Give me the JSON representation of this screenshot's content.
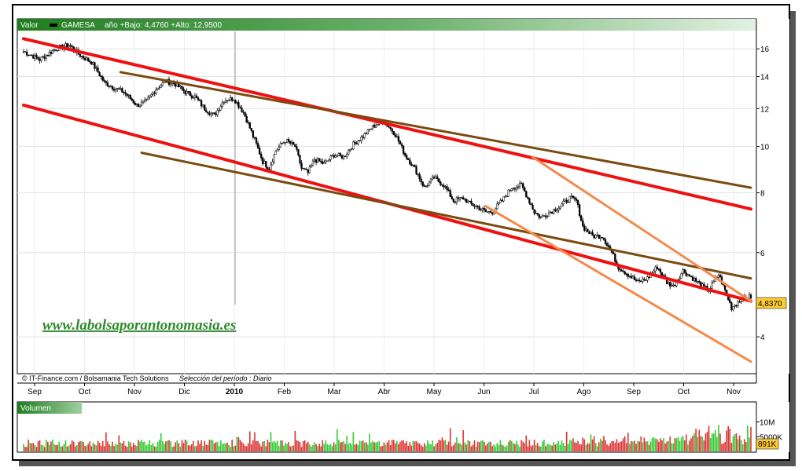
{
  "header": {
    "label_valor": "Valor",
    "ticker": "GAMESA",
    "range_text": "año +Bajo: 4,4760 +Alto: 12,9500"
  },
  "watermark": "www.labolsaporantonomasia.es",
  "credits": {
    "source": "© IT-Finance.com / Bolsamania Tech Solutions",
    "period": "Selección del período : Diario"
  },
  "volume_panel": {
    "title": "Volumen"
  },
  "last_price_label": "4,8370",
  "last_volume_label": "891K",
  "colors": {
    "header_dark": "#1e7d1e",
    "header_light": "#cfe8cf",
    "red_channel": "#ee1111",
    "brown_channel": "#7a4a0f",
    "orange_channel": "#f5894a",
    "last_price_bg": "#ffcc33",
    "volume_up": "#33cc33",
    "volume_down": "#dd3333"
  },
  "chart_data": {
    "type": "candlestick",
    "title": "GAMESA",
    "ylim": [
      3.35,
      17.4
    ],
    "y_scale": "log",
    "y_ticks": [
      "16",
      "14",
      "12",
      "10",
      "8",
      "6",
      "4"
    ],
    "y_tick_values": [
      16,
      14,
      12,
      10,
      8,
      6,
      4
    ],
    "x_months": [
      "Sep",
      "Oct",
      "Nov",
      "Dic",
      "2010",
      "Feb",
      "Mar",
      "Abr",
      "May",
      "Jun",
      "Jul",
      "Ago",
      "Sep",
      "Oct",
      "Nov"
    ],
    "price_path": [
      [
        0,
        15.8
      ],
      [
        10,
        15.2
      ],
      [
        20,
        16.0
      ],
      [
        28,
        16.3
      ],
      [
        35,
        15.5
      ],
      [
        42,
        15.0
      ],
      [
        50,
        13.6
      ],
      [
        57,
        13.2
      ],
      [
        62,
        13.0
      ],
      [
        70,
        12.2
      ],
      [
        76,
        12.4
      ],
      [
        82,
        13.2
      ],
      [
        88,
        13.7
      ],
      [
        94,
        13.5
      ],
      [
        100,
        13.0
      ],
      [
        106,
        12.7
      ],
      [
        112,
        12.0
      ],
      [
        118,
        11.6
      ],
      [
        124,
        12.5
      ],
      [
        130,
        12.6
      ],
      [
        136,
        11.8
      ],
      [
        142,
        10.5
      ],
      [
        148,
        9.3
      ],
      [
        152,
        9.0
      ],
      [
        156,
        9.8
      ],
      [
        162,
        10.3
      ],
      [
        168,
        10.0
      ],
      [
        172,
        9.0
      ],
      [
        176,
        8.8
      ],
      [
        180,
        9.4
      ],
      [
        186,
        9.2
      ],
      [
        192,
        9.6
      ],
      [
        198,
        9.5
      ],
      [
        204,
        10.1
      ],
      [
        210,
        10.5
      ],
      [
        216,
        11.0
      ],
      [
        222,
        11.3
      ],
      [
        226,
        11.0
      ],
      [
        230,
        10.6
      ],
      [
        236,
        9.6
      ],
      [
        242,
        9.0
      ],
      [
        248,
        8.2
      ],
      [
        254,
        8.6
      ],
      [
        260,
        8.3
      ],
      [
        266,
        7.7
      ],
      [
        272,
        7.8
      ],
      [
        276,
        7.6
      ],
      [
        280,
        7.5
      ],
      [
        286,
        7.3
      ],
      [
        290,
        7.3
      ],
      [
        296,
        7.7
      ],
      [
        302,
        8.2
      ],
      [
        308,
        8.3
      ],
      [
        312,
        7.8
      ],
      [
        316,
        7.3
      ],
      [
        320,
        7.1
      ],
      [
        326,
        7.3
      ],
      [
        332,
        7.5
      ],
      [
        338,
        7.8
      ],
      [
        342,
        7.7
      ],
      [
        346,
        6.8
      ],
      [
        352,
        6.5
      ],
      [
        358,
        6.5
      ],
      [
        364,
        6.0
      ],
      [
        368,
        5.6
      ],
      [
        374,
        5.4
      ],
      [
        380,
        5.2
      ],
      [
        386,
        5.3
      ],
      [
        392,
        5.6
      ],
      [
        398,
        5.2
      ],
      [
        402,
        5.1
      ],
      [
        408,
        5.5
      ],
      [
        414,
        5.3
      ],
      [
        420,
        5.1
      ],
      [
        424,
        5.0
      ],
      [
        430,
        5.4
      ],
      [
        434,
        5.0
      ],
      [
        438,
        4.6
      ],
      [
        444,
        4.8
      ],
      [
        450,
        4.85
      ]
    ],
    "last_price": 4.837,
    "year_low": 4.476,
    "year_high": 12.95,
    "trendlines": [
      {
        "name": "red-upper",
        "color": "red",
        "from": [
          0,
          16.8
        ],
        "to": [
          450,
          7.4
        ]
      },
      {
        "name": "red-lower",
        "color": "red",
        "from": [
          0,
          12.2
        ],
        "to": [
          450,
          4.75
        ]
      },
      {
        "name": "brown-upper",
        "color": "brown",
        "from": [
          60,
          14.3
        ],
        "to": [
          450,
          8.2
        ]
      },
      {
        "name": "brown-lower",
        "color": "brown",
        "from": [
          73,
          9.7
        ],
        "to": [
          450,
          5.3
        ]
      },
      {
        "name": "orange-upper",
        "color": "orange",
        "from": [
          315,
          9.5
        ],
        "to": [
          450,
          4.75
        ]
      },
      {
        "name": "orange-lower",
        "color": "orange",
        "from": [
          286,
          7.5
        ],
        "to": [
          450,
          3.55
        ]
      }
    ],
    "volume": {
      "unit_ticks": [
        "10M",
        "5000K"
      ],
      "unit_tick_values": [
        10,
        5
      ],
      "max": 12,
      "note": "daily volume bars in millions, red = down day, green = up day"
    }
  }
}
